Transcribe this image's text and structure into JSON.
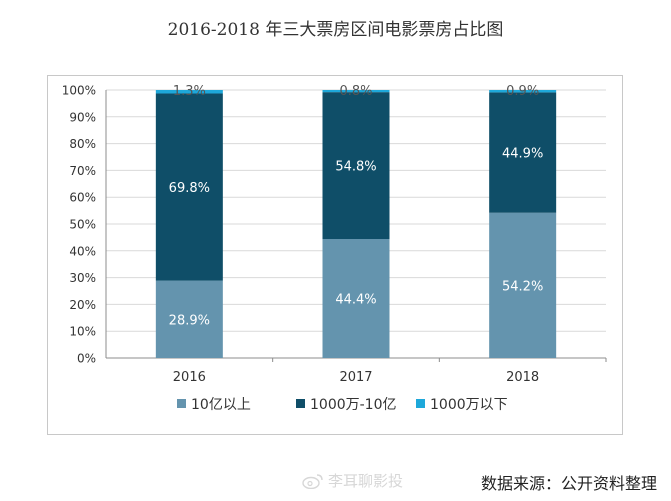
{
  "title": "2016-2018 年三大票房区间电影票房占比图",
  "source": "数据来源：公开资料整理",
  "watermark": "李耳聊影投",
  "colors": {
    "above_1b": "#6494ae",
    "mid": "#0f4e68",
    "below_10m": "#1ea8da"
  },
  "chart_data": {
    "type": "bar",
    "stacked": true,
    "percent": true,
    "title": "2016-2018 年三大票房区间电影票房占比图",
    "categories": [
      "2016",
      "2017",
      "2018"
    ],
    "series": [
      {
        "name": "10亿以上",
        "values": [
          28.9,
          44.4,
          54.2
        ],
        "labels": [
          "28.9%",
          "44.4%",
          "54.2%"
        ],
        "color": "#6494ae"
      },
      {
        "name": "1000万-10亿",
        "values": [
          69.8,
          54.8,
          44.9
        ],
        "labels": [
          "69.8%",
          "54.8%",
          "44.9%"
        ],
        "color": "#0f4e68"
      },
      {
        "name": "1000万以下",
        "values": [
          1.3,
          0.8,
          0.9
        ],
        "labels": [
          "1.3%",
          "0.8%",
          "0.9%"
        ],
        "color": "#1ea8da"
      }
    ],
    "yticks": [
      "0%",
      "10%",
      "20%",
      "30%",
      "40%",
      "50%",
      "60%",
      "70%",
      "80%",
      "90%",
      "100%"
    ],
    "ylim": [
      0,
      100
    ],
    "grid": true,
    "legend": "bottom"
  }
}
